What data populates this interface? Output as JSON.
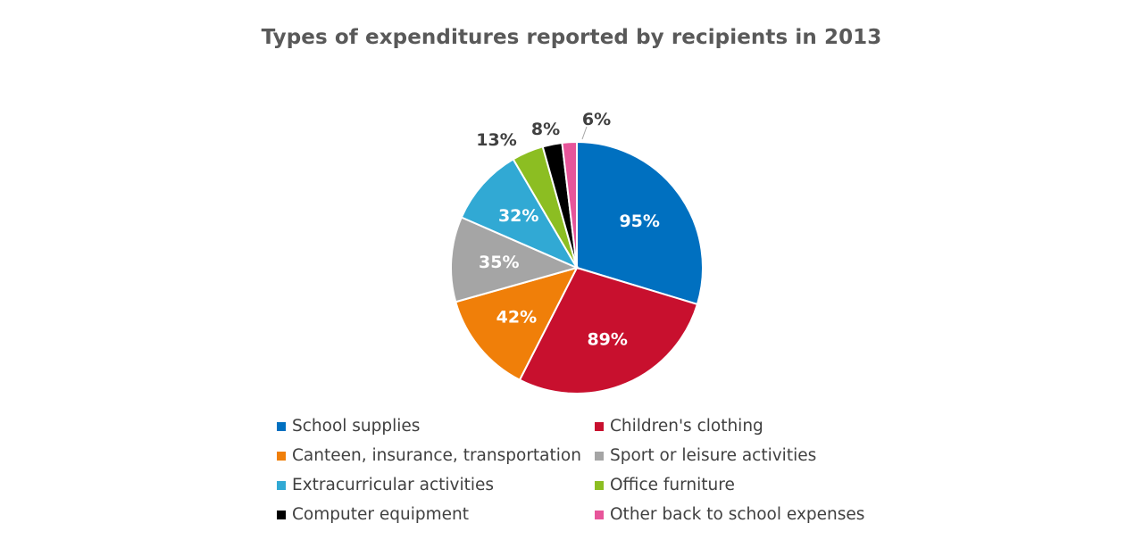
{
  "chart_data": {
    "type": "pie",
    "title": "Types of expenditures reported by recipients in 2013",
    "categories": [
      "School supplies",
      "Children's clothing",
      "Canteen, insurance, transportation",
      "Sport or leisure activities",
      "Extracurricular activities",
      "Office furniture",
      "Computer equipment",
      "Other back to school expenses"
    ],
    "values": [
      95,
      89,
      42,
      35,
      32,
      13,
      8,
      6
    ],
    "data_labels": [
      "95%",
      "89%",
      "42%",
      "35%",
      "32%",
      "13%",
      "8%",
      "6%"
    ],
    "colors": [
      "#0070C0",
      "#C8102E",
      "#F07F09",
      "#A5A5A5",
      "#31A9D4",
      "#8CBE22",
      "#000000",
      "#E7559A"
    ],
    "legend_position": "bottom"
  }
}
